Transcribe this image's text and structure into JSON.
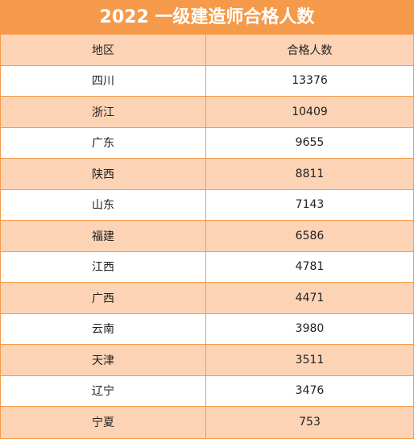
{
  "title": "2022 一级建造师合格人数",
  "columns": {
    "region": "地区",
    "count": "合格人数"
  },
  "rows": [
    {
      "region": "四川",
      "count": "13376"
    },
    {
      "region": "浙江",
      "count": "10409"
    },
    {
      "region": "广东",
      "count": "9655"
    },
    {
      "region": "陕西",
      "count": "8811"
    },
    {
      "region": "山东",
      "count": "7143"
    },
    {
      "region": "福建",
      "count": "6586"
    },
    {
      "region": "江西",
      "count": "4781"
    },
    {
      "region": "广西",
      "count": "4471"
    },
    {
      "region": "云南",
      "count": "3980"
    },
    {
      "region": "天津",
      "count": "3511"
    },
    {
      "region": "辽宁",
      "count": "3476"
    },
    {
      "region": "宁夏",
      "count": "753"
    }
  ],
  "colors": {
    "accent": "#f59a4a",
    "band": "#fdd3b5",
    "white": "#ffffff"
  }
}
